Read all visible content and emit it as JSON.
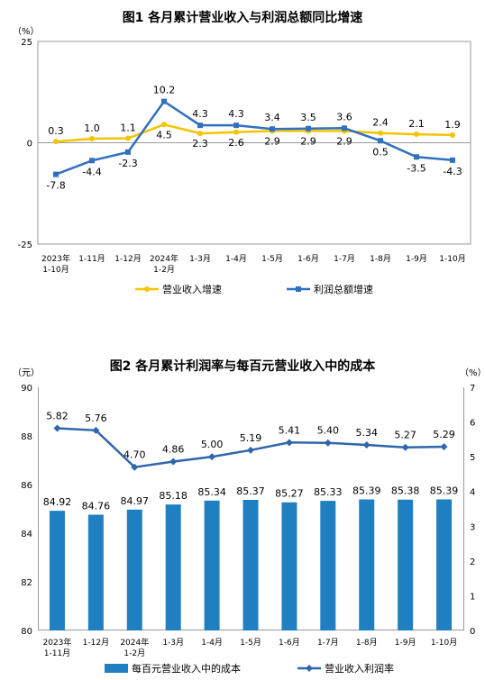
{
  "chart_data": [
    {
      "type": "line",
      "title": "图1  各月累计营业收入与利润总额同比增速",
      "yunit": "（%）",
      "ylim": [
        -25,
        25
      ],
      "yticks": [
        "25",
        "0",
        "-25"
      ],
      "categories": [
        [
          "2023年",
          "1-10月"
        ],
        [
          "1-11月"
        ],
        [
          "1-12月"
        ],
        [
          "2024年",
          "1-2月"
        ],
        [
          "1-3月"
        ],
        [
          "1-4月"
        ],
        [
          "1-5月"
        ],
        [
          "1-6月"
        ],
        [
          "1-7月"
        ],
        [
          "1-8月"
        ],
        [
          "1-9月"
        ],
        [
          "1-10月"
        ]
      ],
      "series": [
        {
          "name": "营业收入增速",
          "color": "#f5c400",
          "values": [
            0.3,
            1.0,
            1.1,
            4.5,
            2.3,
            2.6,
            2.9,
            2.9,
            2.9,
            2.4,
            2.1,
            1.9
          ],
          "labels": [
            "0.3",
            "1.0",
            "1.1",
            "4.5",
            "2.3",
            "2.6",
            "2.9",
            "2.9",
            "2.9",
            "2.4",
            "2.1",
            "1.9"
          ]
        },
        {
          "name": "利润总额增速",
          "color": "#3070c0",
          "values": [
            -7.8,
            -4.4,
            -2.3,
            10.2,
            4.3,
            4.3,
            3.4,
            3.5,
            3.6,
            0.5,
            -3.5,
            -4.3
          ],
          "labels": [
            "-7.8",
            "-4.4",
            "-2.3",
            "10.2",
            "4.3",
            "4.3",
            "3.4",
            "3.5",
            "3.6",
            "0.5",
            "-3.5",
            "-4.3"
          ]
        }
      ],
      "legend_position": "bottom"
    },
    {
      "type": "bar+line",
      "title": "图2  各月累计利润率与每百元营业收入中的成本",
      "yunit_left": "（元）",
      "yunit_right": "（%）",
      "ylim_left": [
        80,
        90
      ],
      "ylim_right": [
        0,
        7
      ],
      "yticks_left": [
        "80",
        "82",
        "84",
        "86",
        "88",
        "90"
      ],
      "yticks_right": [
        "0",
        "1",
        "2",
        "3",
        "4",
        "5",
        "6",
        "7"
      ],
      "categories": [
        [
          "2023年",
          "1-11月"
        ],
        [
          "1-12月"
        ],
        [
          "2024年",
          "1-2月"
        ],
        [
          "1-3月"
        ],
        [
          "1-4月"
        ],
        [
          "1-5月"
        ],
        [
          "1-6月"
        ],
        [
          "1-7月"
        ],
        [
          "1-8月"
        ],
        [
          "1-9月"
        ],
        [
          "1-10月"
        ]
      ],
      "bars": {
        "name": "每百元营业收入中的成本",
        "color": "#1f7fc1",
        "values": [
          84.92,
          84.76,
          84.97,
          85.18,
          85.34,
          85.37,
          85.27,
          85.33,
          85.39,
          85.38,
          85.39
        ],
        "labels": [
          "84.92",
          "84.76",
          "84.97",
          "85.18",
          "85.34",
          "85.37",
          "85.27",
          "85.33",
          "85.39",
          "85.38",
          "85.39"
        ]
      },
      "line": {
        "name": "营业收入利润率",
        "color": "#2f66ad",
        "values": [
          5.82,
          5.76,
          4.7,
          4.86,
          5.0,
          5.19,
          5.41,
          5.4,
          5.34,
          5.27,
          5.29
        ],
        "labels": [
          "5.82",
          "5.76",
          "4.70",
          "4.86",
          "5.00",
          "5.19",
          "5.41",
          "5.40",
          "5.34",
          "5.27",
          "5.29"
        ]
      },
      "legend_position": "bottom"
    }
  ]
}
